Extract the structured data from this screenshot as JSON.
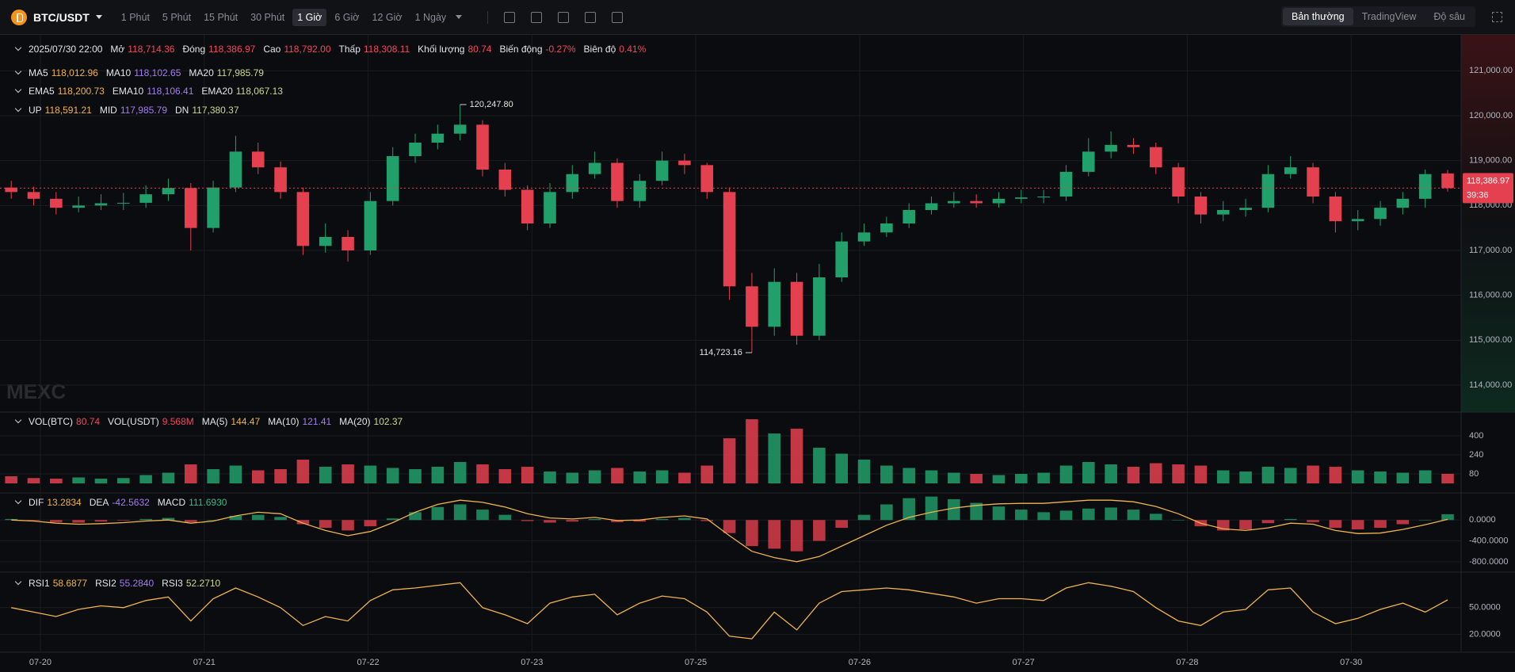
{
  "toolbar": {
    "symbol": "BTC/USDT",
    "intervals": [
      "1 Phút",
      "5 Phút",
      "15 Phút",
      "30 Phút",
      "1 Giờ",
      "6 Giờ",
      "12 Giờ",
      "1 Ngày"
    ],
    "active_interval": 4,
    "modes": [
      "Bản thường",
      "TradingView",
      "Độ sâu"
    ],
    "active_mode": 0
  },
  "legends": [
    {
      "color": "#f6465d",
      "items": [
        {
          "label": "2025/07/30 22:00"
        },
        {
          "label": "Mở",
          "value": "118,714.36"
        },
        {
          "label": "Đóng",
          "value": "118,386.97"
        },
        {
          "label": "Cao",
          "value": "118,792.00"
        },
        {
          "label": "Thấp",
          "value": "118,308.11"
        },
        {
          "label": "Khối lượng",
          "value": "80.74"
        },
        {
          "label": "Biến động",
          "value": "-0.27%"
        },
        {
          "label": "Biên độ",
          "value": "0.41%"
        }
      ]
    },
    {
      "items": [
        {
          "label": "MA5",
          "value": "118,012.96",
          "color": "#f0b44c"
        },
        {
          "label": "MA10",
          "value": "118,102.65",
          "color": "#a57cf0"
        },
        {
          "label": "MA20",
          "value": "117,985.79",
          "color": "#c9dc8a"
        }
      ]
    },
    {
      "items": [
        {
          "label": "EMA5",
          "value": "118,200.73",
          "color": "#f0b44c"
        },
        {
          "label": "EMA10",
          "value": "118,106.41",
          "color": "#a57cf0"
        },
        {
          "label": "EMA20",
          "value": "118,067.13",
          "color": "#c9dc8a"
        }
      ]
    },
    {
      "items": [
        {
          "label": "UP",
          "value": "118,591.21",
          "color": "#f0b44c"
        },
        {
          "label": "MID",
          "value": "117,985.79",
          "color": "#a57cf0"
        },
        {
          "label": "DN",
          "value": "117,380.37",
          "color": "#c9dc8a"
        }
      ]
    },
    {
      "items": [
        {
          "label": "VOL(BTC)",
          "value": "80.74",
          "color": "#f6465d"
        },
        {
          "label": "VOL(USDT)",
          "value": "9.568M",
          "color": "#f6465d"
        },
        {
          "label": "MA(5)",
          "value": "144.47",
          "color": "#f0b44c"
        },
        {
          "label": "MA(10)",
          "value": "121.41",
          "color": "#a57cf0"
        },
        {
          "label": "MA(20)",
          "value": "102.37",
          "color": "#c9dc8a"
        }
      ]
    },
    {
      "items": [
        {
          "label": "DIF",
          "value": "13.2834",
          "color": "#f0b44c"
        },
        {
          "label": "DEA",
          "value": "-42.5632",
          "color": "#a57cf0"
        },
        {
          "label": "MACD",
          "value": "111.6930",
          "color": "#2ebd85"
        }
      ]
    },
    {
      "items": [
        {
          "label": "RSI1",
          "value": "58.6877",
          "color": "#f0b44c"
        },
        {
          "label": "RSI2",
          "value": "55.2840",
          "color": "#a57cf0"
        },
        {
          "label": "RSI3",
          "value": "52.2710",
          "color": "#c9dc8a"
        }
      ]
    }
  ],
  "chart_data": {
    "type": "candlestick",
    "watermark": "MEXC",
    "up_color": "#22a06b",
    "down_color": "#e5404f",
    "grid_color": "#1a1c21",
    "xlim": [
      -0.5,
      64.6
    ],
    "xticks": [
      {
        "value": 1.3,
        "label": "07-20"
      },
      {
        "value": 8.6,
        "label": "07-21"
      },
      {
        "value": 15.9,
        "label": "07-22"
      },
      {
        "value": 23.2,
        "label": "07-23"
      },
      {
        "value": 30.5,
        "label": "07-25"
      },
      {
        "value": 37.8,
        "label": "07-26"
      },
      {
        "value": 45.1,
        "label": "07-27"
      },
      {
        "value": 52.4,
        "label": "07-28"
      },
      {
        "value": 59.7,
        "label": "07-30"
      }
    ],
    "ylim": [
      113400,
      121800
    ],
    "yticks": [
      {
        "value": 114000,
        "label": "114,000.00"
      },
      {
        "value": 115000,
        "label": "115,000.00"
      },
      {
        "value": 116000,
        "label": "116,000.00"
      },
      {
        "value": 117000,
        "label": "117,000.00"
      },
      {
        "value": 118000,
        "label": "118,000.00"
      },
      {
        "value": 119000,
        "label": "119,000.00"
      },
      {
        "value": 120000,
        "label": "120,000.00"
      },
      {
        "value": 121000,
        "label": "121,000.00"
      }
    ],
    "open": [
      118400,
      118300,
      118150,
      117950,
      118000,
      118050,
      118060,
      118250,
      118390,
      117500,
      118400,
      119200,
      118850,
      118300,
      117100,
      117300,
      117000,
      118100,
      119100,
      119400,
      119600,
      119800,
      118800,
      118350,
      117600,
      118300,
      118700,
      118950,
      118100,
      118550,
      119000,
      118900,
      118300,
      116200,
      115300,
      116300,
      115100,
      116400,
      117200,
      117400,
      117600,
      117900,
      118050,
      118100,
      118050,
      118150,
      118180,
      118200,
      118750,
      119200,
      119350,
      119300,
      118850,
      118200,
      117800,
      117900,
      117950,
      118700,
      118850,
      118200,
      117650,
      117700,
      117950,
      118150,
      118714.36
    ],
    "high": [
      118550,
      118420,
      118300,
      118200,
      118250,
      118280,
      118450,
      118600,
      118500,
      118550,
      119550,
      119400,
      118980,
      118400,
      117600,
      117450,
      118300,
      119300,
      119600,
      119800,
      120247.8,
      119900,
      118950,
      118450,
      118500,
      118900,
      119200,
      119050,
      118700,
      119200,
      119150,
      118950,
      118400,
      116500,
      116600,
      116500,
      116700,
      117400,
      117600,
      117750,
      118050,
      118200,
      118300,
      118250,
      118300,
      118350,
      118350,
      118900,
      119500,
      119650,
      119500,
      119400,
      118950,
      118300,
      118100,
      118150,
      118900,
      119100,
      118950,
      118300,
      117900,
      118100,
      118300,
      118800,
      118792
    ],
    "low": [
      118150,
      118000,
      117800,
      117850,
      117900,
      117900,
      117950,
      118100,
      117000,
      117400,
      118300,
      118700,
      118150,
      116900,
      116950,
      116750,
      116900,
      118000,
      118950,
      119250,
      119450,
      118650,
      118200,
      117450,
      117500,
      118150,
      118600,
      117950,
      117950,
      118450,
      118700,
      118150,
      115900,
      114723.16,
      115100,
      114900,
      115000,
      116300,
      117100,
      117300,
      117500,
      117800,
      117950,
      117950,
      117950,
      118050,
      118050,
      118100,
      118650,
      119050,
      119150,
      118700,
      118050,
      117600,
      117650,
      117750,
      117850,
      118600,
      118050,
      117400,
      117450,
      117550,
      117800,
      117950,
      118308.11
    ],
    "close": [
      118300,
      118150,
      117950,
      118000,
      118050,
      118060,
      118250,
      118390,
      117500,
      118400,
      119200,
      118850,
      118300,
      117100,
      117300,
      117000,
      118100,
      119100,
      119400,
      119600,
      119800,
      118800,
      118350,
      117600,
      118300,
      118700,
      118950,
      118100,
      118550,
      119000,
      118900,
      118300,
      116200,
      115300,
      116300,
      115100,
      116400,
      117200,
      117400,
      117600,
      117900,
      118050,
      118100,
      118050,
      118150,
      118180,
      118200,
      118750,
      119200,
      119350,
      119300,
      118850,
      118200,
      117800,
      117900,
      117950,
      118700,
      118850,
      118200,
      117650,
      117700,
      117950,
      118150,
      118700,
      118386.97
    ],
    "last_price_label": "118,386.97",
    "countdown": "39:36",
    "high_label": "120,247.80",
    "low_label": "114,723.16",
    "volume": {
      "type": "bar",
      "ylim": [
        0,
        587
      ],
      "yticks": [
        400,
        240,
        80
      ],
      "values": [
        60,
        45,
        40,
        50,
        40,
        45,
        70,
        90,
        160,
        120,
        150,
        110,
        120,
        200,
        140,
        160,
        150,
        130,
        120,
        140,
        180,
        160,
        120,
        140,
        100,
        90,
        110,
        130,
        100,
        110,
        90,
        150,
        380,
        540,
        420,
        460,
        300,
        250,
        200,
        150,
        130,
        110,
        90,
        80,
        70,
        80,
        90,
        150,
        180,
        160,
        140,
        170,
        160,
        150,
        110,
        100,
        140,
        130,
        150,
        140,
        110,
        100,
        90,
        110,
        80.74
      ]
    },
    "macd": {
      "type": "bar",
      "ylim": [
        -1000,
        490
      ],
      "yticks": [
        {
          "value": 0,
          "label": "0.0000"
        },
        {
          "value": -400,
          "label": "-400.0000"
        },
        {
          "value": -800,
          "label": "-800.0000"
        }
      ],
      "dif_color": "#f0b44c",
      "histogram": [
        20,
        -10,
        -40,
        -50,
        -30,
        -10,
        20,
        40,
        -40,
        0,
        80,
        100,
        60,
        -80,
        -150,
        -200,
        -120,
        30,
        150,
        250,
        300,
        200,
        100,
        -20,
        -50,
        -30,
        20,
        -40,
        -30,
        20,
        40,
        -20,
        -250,
        -500,
        -550,
        -600,
        -400,
        -150,
        100,
        300,
        420,
        450,
        400,
        330,
        260,
        200,
        150,
        180,
        220,
        240,
        200,
        120,
        0,
        -120,
        -200,
        -180,
        -60,
        20,
        -40,
        -150,
        -180,
        -150,
        -80,
        0,
        111.693
      ],
      "dif": [
        0,
        -20,
        -60,
        -80,
        -70,
        -50,
        -20,
        0,
        -60,
        -20,
        80,
        150,
        120,
        -60,
        -200,
        -300,
        -220,
        -50,
        150,
        300,
        380,
        340,
        250,
        120,
        40,
        20,
        50,
        -10,
        0,
        50,
        80,
        20,
        -300,
        -600,
        -720,
        -800,
        -700,
        -500,
        -300,
        -100,
        50,
        150,
        230,
        280,
        310,
        320,
        320,
        350,
        380,
        380,
        350,
        260,
        120,
        -60,
        -170,
        -200,
        -150,
        -60,
        -80,
        -200,
        -260,
        -250,
        -180,
        -90,
        13.2834
      ]
    },
    "rsi": {
      "type": "line",
      "ylim": [
        0,
        88
      ],
      "yticks": [
        {
          "value": 50,
          "label": "50.0000"
        },
        {
          "value": 20,
          "label": "20.0000"
        }
      ],
      "color": "#f0b44c",
      "values": [
        50,
        45,
        40,
        48,
        52,
        50,
        58,
        62,
        35,
        60,
        72,
        62,
        50,
        30,
        40,
        35,
        58,
        70,
        72,
        75,
        78,
        50,
        42,
        32,
        55,
        62,
        65,
        42,
        55,
        63,
        60,
        45,
        18,
        15,
        45,
        25,
        55,
        68,
        70,
        72,
        70,
        66,
        62,
        55,
        60,
        60,
        58,
        72,
        78,
        74,
        68,
        50,
        35,
        30,
        45,
        48,
        70,
        72,
        45,
        32,
        38,
        48,
        55,
        45,
        58.6877
      ]
    }
  }
}
